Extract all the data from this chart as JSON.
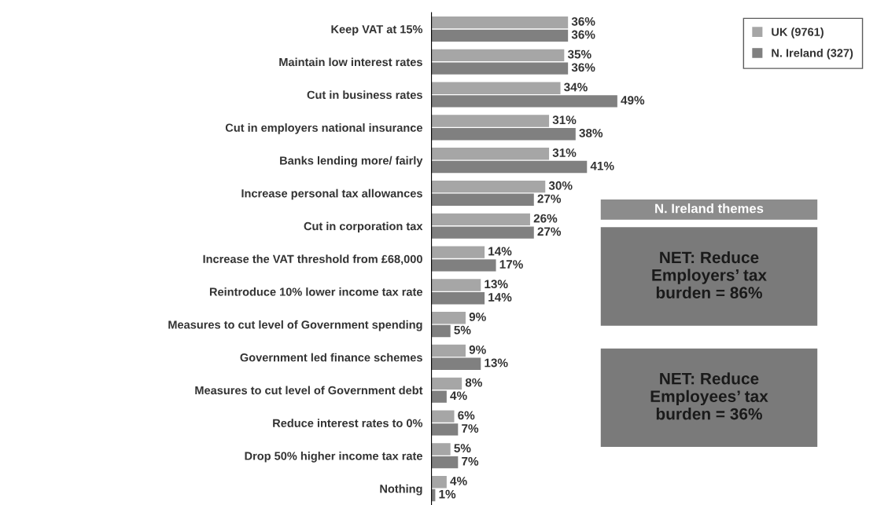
{
  "chart_data": {
    "type": "bar",
    "orientation": "horizontal",
    "categories": [
      "Keep VAT at 15%",
      "Maintain low interest rates",
      "Cut in business rates",
      "Cut in employers national insurance",
      "Banks lending more/ fairly",
      "Increase personal tax allowances",
      "Cut in corporation tax",
      "Increase the VAT threshold from £68,000",
      "Reintroduce 10% lower income tax rate",
      "Measures to cut level of Government spending",
      "Government led finance schemes",
      "Measures to cut level of Government debt",
      "Reduce interest rates to 0%",
      "Drop 50% higher income tax rate",
      "Nothing"
    ],
    "series": [
      {
        "name": "UK (9761)",
        "color": "#a6a6a6",
        "values": [
          36,
          35,
          34,
          31,
          31,
          30,
          26,
          14,
          13,
          9,
          9,
          8,
          6,
          5,
          4
        ],
        "value_labels": [
          "36%",
          "35%",
          "34%",
          "31%",
          "31%",
          "30%",
          "26%",
          "14%",
          "13%",
          "9%",
          "9%",
          "8%",
          "6%",
          "5%",
          "4%"
        ]
      },
      {
        "name": "N. Ireland (327)",
        "color": "#808080",
        "values": [
          36,
          36,
          49,
          38,
          41,
          27,
          27,
          17,
          14,
          5,
          13,
          4,
          7,
          7,
          1
        ],
        "value_labels": [
          "36%",
          "36%",
          "49%",
          "38%",
          "41%",
          "27%",
          "27%",
          "17%",
          "14%",
          "5%",
          "13%",
          "4%",
          "7%",
          "7%",
          "1%"
        ]
      }
    ],
    "legend": "top right",
    "tick_labels": "y",
    "grid": false,
    "annotations": [
      "N. Ireland themes",
      "NET: Reduce\nEmployers’ tax\nburden = 86%",
      "NET: Reduce\nEmployees’ tax\nburden = 36%"
    ]
  }
}
